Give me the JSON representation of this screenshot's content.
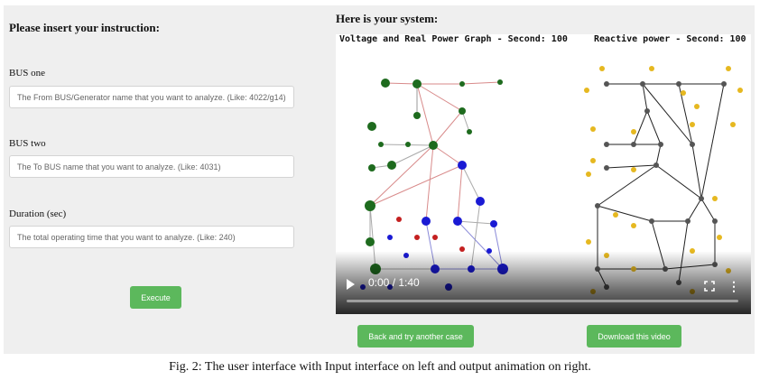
{
  "left": {
    "heading": "Please insert your instruction:",
    "bus_one": {
      "label": "BUS one",
      "placeholder": "The From BUS/Generator name that you want to analyze. (Like: 4022/g14)"
    },
    "bus_two": {
      "label": "BUS two",
      "placeholder": "The To BUS name that you want to analyze. (Like: 4031)"
    },
    "duration": {
      "label": "Duration (sec)",
      "placeholder": "The total operating time that you want to analyze. (Like: 240)"
    },
    "execute_label": "Execute"
  },
  "right": {
    "heading": "Here is your system:",
    "video": {
      "graph1_title": "Voltage and Real Power Graph - Second: 100",
      "graph2_title": "Reactive power - Second: 100",
      "time": "0:00 / 1:40",
      "progress": 0
    },
    "back_label": "Back and try another case",
    "download_label": "Download this video"
  },
  "caption": "Fig. 2: The user interface with Input interface on left and output animation on right.",
  "colors": {
    "button": "#5cb85c",
    "gen_node": "#1e6b1e",
    "load_node": "#1a1ad4",
    "red_node": "#c42020",
    "reactive_node": "#e6b820",
    "dark_node": "#555555"
  }
}
